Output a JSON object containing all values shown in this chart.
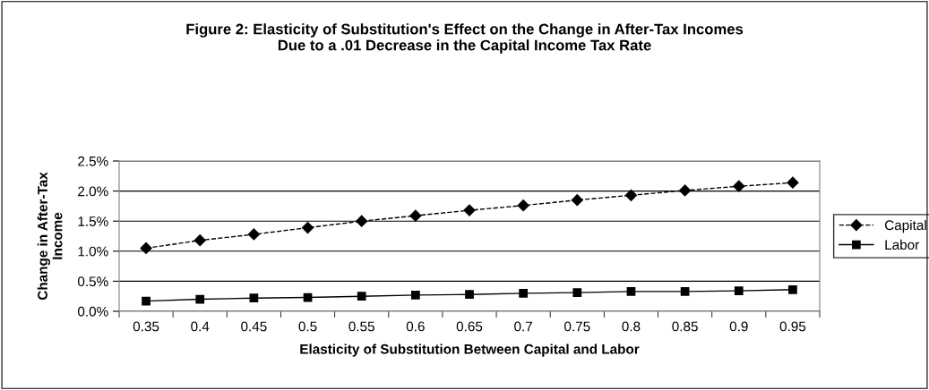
{
  "chart_data": {
    "type": "line",
    "title": "Figure 2: Elasticity of Substitution's Effect on the Change in After-Tax Incomes\nDue to a .01 Decrease in the Capital Income Tax Rate",
    "xlabel": "Elasticity of Substitution Between Capital and Labor",
    "ylabel": "Change in After-Tax\nIncome",
    "categories": [
      "0.35",
      "0.4",
      "0.45",
      "0.5",
      "0.55",
      "0.6",
      "0.65",
      "0.7",
      "0.75",
      "0.8",
      "0.85",
      "0.9",
      "0.95"
    ],
    "series": [
      {
        "name": "Capital",
        "color": "#000000",
        "marker": "diamond",
        "line_style": "dashed",
        "values": [
          1.05,
          1.18,
          1.28,
          1.39,
          1.5,
          1.59,
          1.68,
          1.76,
          1.85,
          1.93,
          2.01,
          2.08,
          2.14
        ]
      },
      {
        "name": "Labor",
        "color": "#000000",
        "marker": "square",
        "line_style": "solid",
        "values": [
          0.17,
          0.2,
          0.22,
          0.23,
          0.25,
          0.27,
          0.28,
          0.3,
          0.31,
          0.33,
          0.33,
          0.34,
          0.36
        ]
      }
    ],
    "ylim": [
      0,
      2.5
    ],
    "yticks": [
      {
        "value": 0,
        "label": "0.0%"
      },
      {
        "value": 0.5,
        "label": "0.5%"
      },
      {
        "value": 1.0,
        "label": "1.0%"
      },
      {
        "value": 1.5,
        "label": "1.5%"
      },
      {
        "value": 2.0,
        "label": "2.0%"
      },
      {
        "value": 2.5,
        "label": "2.5%"
      }
    ],
    "grid": "y",
    "legend": "right"
  }
}
